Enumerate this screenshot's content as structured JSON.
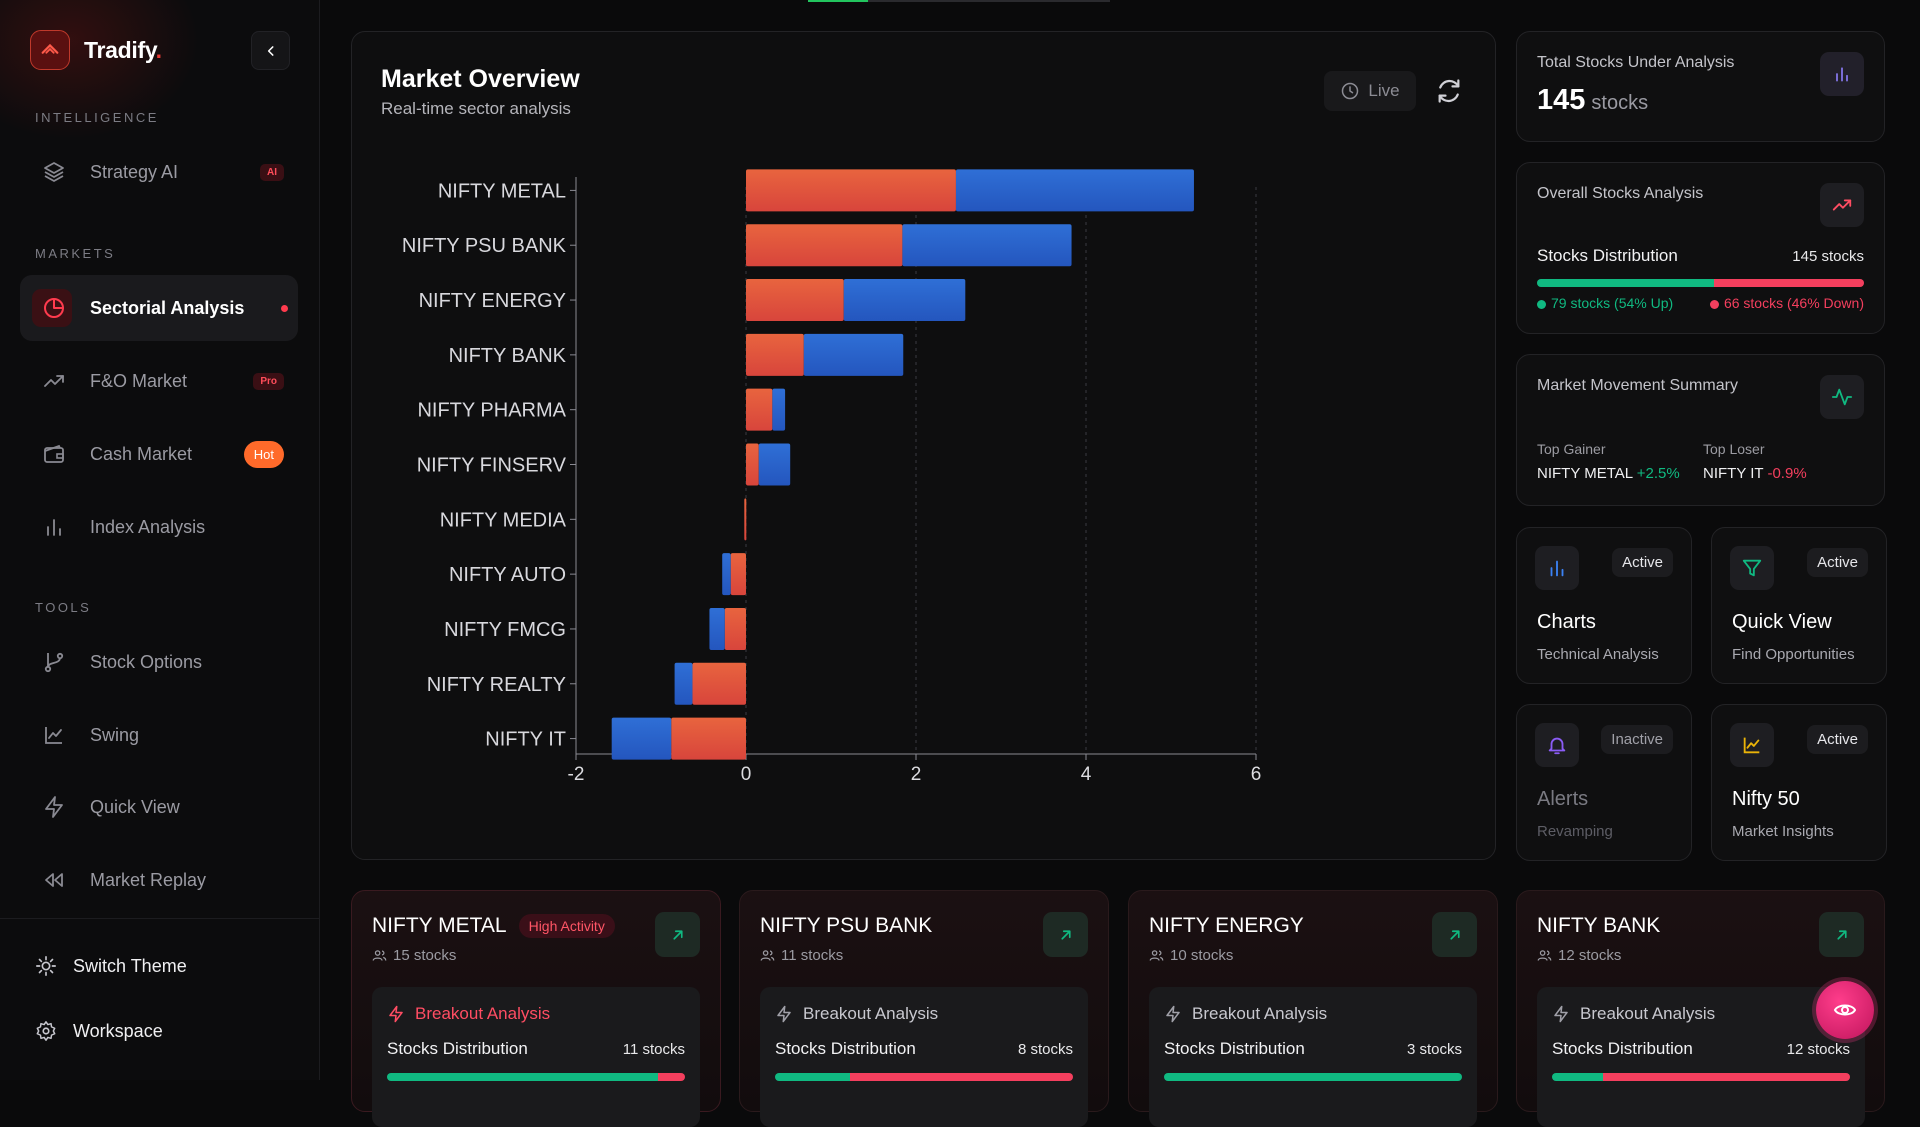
{
  "brand": {
    "name": "Tradify",
    "dot": "."
  },
  "sidebar": {
    "sections": {
      "intelligence": "INTELLIGENCE",
      "markets": "MARKETS",
      "tools": "TOOLS"
    },
    "items": [
      {
        "label": "Strategy AI",
        "badge": "AI",
        "icon": "layers-icon"
      },
      {
        "label": "Sectorial Analysis",
        "icon": "pie-chart-icon",
        "active": true
      },
      {
        "label": "F&O Market",
        "badge": "Pro",
        "icon": "trending-up-icon"
      },
      {
        "label": "Cash Market",
        "badge": "Hot",
        "icon": "wallet-icon"
      },
      {
        "label": "Index Analysis",
        "icon": "bar-chart-icon"
      },
      {
        "label": "Stock Options",
        "icon": "git-branch-icon"
      },
      {
        "label": "Swing",
        "icon": "line-chart-icon"
      },
      {
        "label": "Quick View",
        "icon": "zap-icon"
      },
      {
        "label": "Market Replay",
        "icon": "rewind-icon"
      }
    ],
    "bottom": [
      {
        "label": "Switch Theme",
        "icon": "sun-icon"
      },
      {
        "label": "Workspace",
        "icon": "settings-icon"
      }
    ]
  },
  "overview": {
    "title": "Market Overview",
    "subtitle": "Real-time sector analysis",
    "live_label": "Live"
  },
  "chart_data": {
    "type": "bar",
    "orientation": "horizontal",
    "stacked": true,
    "categories": [
      "NIFTY METAL",
      "NIFTY PSU BANK",
      "NIFTY ENERGY",
      "NIFTY BANK",
      "NIFTY PHARMA",
      "NIFTY FINSERV",
      "NIFTY MEDIA",
      "NIFTY AUTO",
      "NIFTY FMCG",
      "NIFTY REALTY",
      "NIFTY IT"
    ],
    "series": [
      {
        "values": [
          2.47,
          1.84,
          1.15,
          0.68,
          0.31,
          0.15,
          -0.02,
          -0.18,
          -0.25,
          -0.63,
          -0.88
        ]
      },
      {
        "values": [
          2.8,
          1.99,
          1.43,
          1.17,
          0.15,
          0.37,
          0.0,
          -0.1,
          -0.18,
          -0.21,
          -0.7
        ]
      }
    ],
    "xlim": [
      -2,
      6
    ],
    "xticks": [
      "-2",
      "0",
      "2",
      "4",
      "6"
    ],
    "grid": true,
    "colors": {
      "orange": "#e8553a",
      "blue": "#2563c9"
    }
  },
  "stats": {
    "total": {
      "label": "Total Stocks Under Analysis",
      "value": "145",
      "unit": "stocks"
    },
    "overall": {
      "label": "Overall Stocks Analysis",
      "dist_label": "Stocks Distribution",
      "dist_count": "145 stocks",
      "up_fraction": 0.54,
      "up_text": "79 stocks (54% Up)",
      "down_text": "66 stocks (46% Down)"
    },
    "movement": {
      "label": "Market Movement Summary",
      "gainer_label": "Top Gainer",
      "gainer_name": "NIFTY METAL",
      "gainer_value": "+2.5%",
      "loser_label": "Top Loser",
      "loser_name": "NIFTY IT",
      "loser_value": "-0.9%"
    }
  },
  "tools": [
    {
      "title": "Charts",
      "sub": "Technical Analysis",
      "status": "Active",
      "icon": "bar-chart-icon"
    },
    {
      "title": "Quick View",
      "sub": "Find Opportunities",
      "status": "Active",
      "icon": "filter-icon"
    },
    {
      "title": "Alerts",
      "sub": "Revamping",
      "status": "Inactive",
      "icon": "bell-icon"
    },
    {
      "title": "Nifty 50",
      "sub": "Market Insights",
      "status": "Active",
      "icon": "line-chart-icon"
    }
  ],
  "sectors": [
    {
      "name": "NIFTY METAL",
      "badge": "High Activity",
      "count": "15 stocks",
      "breakout": "Breakout Analysis",
      "dist_label": "Stocks Distribution",
      "dist_count": "11 stocks",
      "up_fraction": 0.91
    },
    {
      "name": "NIFTY PSU BANK",
      "count": "11 stocks",
      "breakout": "Breakout Analysis",
      "dist_label": "Stocks Distribution",
      "dist_count": "8 stocks",
      "up_fraction": 0.25
    },
    {
      "name": "NIFTY ENERGY",
      "count": "10 stocks",
      "breakout": "Breakout Analysis",
      "dist_label": "Stocks Distribution",
      "dist_count": "3 stocks",
      "up_fraction": 1.0
    },
    {
      "name": "NIFTY BANK",
      "count": "12 stocks",
      "breakout": "Breakout Analysis",
      "dist_label": "Stocks Distribution",
      "dist_count": "12 stocks",
      "up_fraction": 0.17
    }
  ]
}
